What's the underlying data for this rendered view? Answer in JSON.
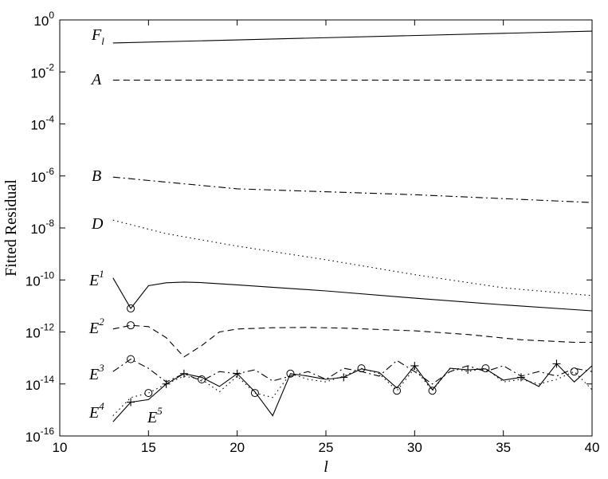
{
  "chart_data": {
    "type": "line",
    "title": "",
    "xlabel": "l",
    "ylabel": "Fitted Residual",
    "xlim": [
      10,
      40
    ],
    "ylim_log10": [
      -16,
      0
    ],
    "yscale": "log",
    "grid": false,
    "x_ticks": [
      10,
      15,
      20,
      25,
      30,
      35,
      40
    ],
    "y_ticks": [
      {
        "base": "10",
        "exp": "0"
      },
      {
        "base": "10",
        "exp": "-2"
      },
      {
        "base": "10",
        "exp": "-4"
      },
      {
        "base": "10",
        "exp": "-6"
      },
      {
        "base": "10",
        "exp": "-8"
      },
      {
        "base": "10",
        "exp": "-10"
      },
      {
        "base": "10",
        "exp": "-12"
      },
      {
        "base": "10",
        "exp": "-14"
      },
      {
        "base": "10",
        "exp": "-16"
      }
    ],
    "series": [
      {
        "name": "F",
        "sub": "l",
        "style": "solid",
        "marker": "none",
        "x": [
          13,
          40
        ],
        "y": [
          0.13,
          0.37
        ]
      },
      {
        "name": "A",
        "style": "dashed",
        "marker": "none",
        "x": [
          13,
          40
        ],
        "y": [
          0.0048,
          0.0048
        ]
      },
      {
        "name": "B",
        "style": "dashdot",
        "marker": "none",
        "x": [
          13,
          20,
          30,
          40
        ],
        "y": [
          9e-07,
          3.2e-07,
          1.9e-07,
          9.5e-08
        ]
      },
      {
        "name": "D",
        "style": "dotted",
        "marker": "none",
        "x": [
          13,
          16,
          20,
          25,
          30,
          35,
          40
        ],
        "y": [
          2e-08,
          6e-09,
          2e-09,
          6e-10,
          1.6e-10,
          5e-11,
          2.5e-11
        ]
      },
      {
        "name": "E",
        "sup": "1",
        "style": "solid",
        "marker": "circle",
        "marker_x": [
          14
        ],
        "x": [
          13,
          14,
          15,
          16,
          17,
          18,
          20,
          25,
          30,
          35,
          40
        ],
        "y": [
          1.2e-10,
          8e-12,
          6e-11,
          7.8e-11,
          8.3e-11,
          7.9e-11,
          6.5e-11,
          3.8e-11,
          2e-11,
          1.1e-11,
          6.5e-12
        ]
      },
      {
        "name": "E",
        "sup": "2",
        "style": "dashed",
        "marker": "circle",
        "marker_x": [
          14
        ],
        "x": [
          13,
          14,
          15,
          16,
          17,
          18,
          19,
          20,
          22,
          24,
          26,
          30,
          33,
          36,
          39,
          40
        ],
        "y": [
          1.3e-12,
          1.8e-12,
          1.6e-12,
          6e-13,
          1.1e-13,
          3e-13,
          1e-12,
          1.3e-12,
          1.45e-12,
          1.5e-12,
          1.4e-12,
          1.1e-12,
          8e-13,
          5e-13,
          4e-13,
          4e-13
        ]
      },
      {
        "name": "E",
        "sup": "3",
        "style": "dashdot",
        "marker": "circle",
        "marker_x": [
          14
        ],
        "x": [
          13,
          14,
          15,
          16,
          17,
          18,
          19,
          20,
          21,
          22,
          23,
          24,
          25,
          26,
          27,
          28,
          29,
          30,
          31,
          32,
          33,
          34,
          35,
          36,
          37,
          38,
          39,
          40
        ],
        "y": [
          3e-14,
          9e-14,
          4e-14,
          1.2e-14,
          2.5e-14,
          1.3e-14,
          3e-14,
          2.5e-14,
          3.5e-14,
          1.3e-14,
          2e-14,
          3e-14,
          1.5e-14,
          4e-14,
          3e-14,
          2e-14,
          8e-14,
          3e-14,
          1e-14,
          3e-14,
          5e-14,
          3e-14,
          5e-14,
          2e-14,
          3e-14,
          2e-14,
          4e-14,
          3e-14
        ]
      },
      {
        "name": "E",
        "sup": "4",
        "style": "solid",
        "marker": "plus",
        "marker_x": [
          14,
          16,
          17,
          20,
          26,
          30,
          33,
          36,
          38
        ],
        "x": [
          13,
          14,
          15,
          16,
          17,
          18,
          19,
          20,
          21,
          22,
          23,
          24,
          25,
          26,
          27,
          28,
          29,
          30,
          31,
          32,
          33,
          34,
          35,
          36,
          37,
          38,
          39,
          40
        ],
        "y": [
          3.5e-16,
          2e-15,
          2.5e-15,
          1e-14,
          2.5e-14,
          1.8e-14,
          8e-15,
          2.5e-14,
          5e-15,
          6e-16,
          2.5e-14,
          2e-14,
          1.5e-14,
          1.8e-14,
          3.8e-14,
          2.8e-14,
          7e-15,
          5e-14,
          6e-15,
          4e-14,
          3.5e-14,
          3.8e-14,
          1.4e-14,
          1.8e-14,
          8e-15,
          6e-14,
          1.2e-14,
          5e-14
        ]
      },
      {
        "name": "E",
        "sup": "5",
        "style": "dotted",
        "marker": "circle",
        "marker_x": [
          15,
          18,
          21,
          23,
          27,
          29,
          31,
          34,
          39
        ],
        "x": [
          13,
          14,
          15,
          16,
          17,
          18,
          19,
          20,
          21,
          22,
          23,
          24,
          25,
          26,
          27,
          28,
          29,
          30,
          31,
          32,
          33,
          34,
          35,
          36,
          37,
          38,
          39,
          40
        ],
        "y": [
          6e-16,
          3e-15,
          4.5e-15,
          1e-14,
          2e-14,
          1.5e-14,
          5e-15,
          2e-14,
          4.5e-15,
          3e-15,
          2.5e-14,
          1.5e-14,
          1.2e-14,
          2e-14,
          4e-14,
          2.5e-14,
          5.5e-15,
          4e-14,
          5.5e-15,
          4e-14,
          3e-14,
          4e-14,
          1.2e-14,
          1.5e-14,
          1e-14,
          1.5e-14,
          3e-14,
          6e-15
        ]
      }
    ]
  }
}
